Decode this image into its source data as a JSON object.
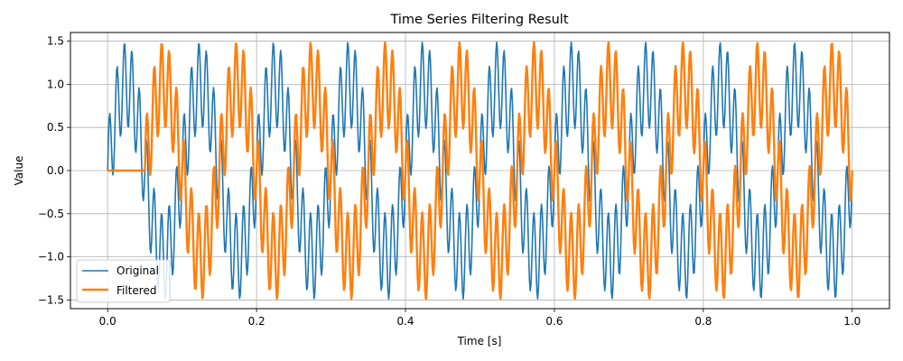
{
  "chart_data": {
    "type": "line",
    "title": "Time Series Filtering Result",
    "xlabel": "Time [s]",
    "ylabel": "Value",
    "xlim": [
      -0.05,
      1.05
    ],
    "ylim": [
      -1.6,
      1.6
    ],
    "grid": true,
    "legend_position": "lower-left",
    "xticks": [
      0.0,
      0.2,
      0.4,
      0.6,
      0.8,
      1.0
    ],
    "xtick_labels": [
      "0.0",
      "0.2",
      "0.4",
      "0.6",
      "0.8",
      "1.0"
    ],
    "yticks": [
      1.5,
      1.0,
      0.5,
      0.0,
      -0.5,
      -1.0,
      -1.5
    ],
    "ytick_labels": [
      "1.5",
      "1.0",
      "0.5",
      "0.0",
      "−0.5",
      "−1.0",
      "−1.5"
    ],
    "series": [
      {
        "name": "Original",
        "color": "#1f77b4",
        "description": "sum of sine components, 1000 samples over 0-1 s",
        "x_range": [
          0.0,
          1.0
        ],
        "samples": 1000,
        "components": [
          {
            "amplitude": 1.0,
            "frequency_hz": 10,
            "phase_deg": 0
          },
          {
            "amplitude": 0.5,
            "frequency_hz": 100,
            "phase_deg": 0
          }
        ]
      },
      {
        "name": "Filtered",
        "color": "#ff7f0e",
        "description": "delayed filter output, flat until start time",
        "x_range": [
          0.0,
          1.0
        ],
        "samples": 1000,
        "start_time": 0.05,
        "components": [
          {
            "amplitude": 1.0,
            "frequency_hz": 10,
            "phase_deg": 180
          },
          {
            "amplitude": 0.5,
            "frequency_hz": 100,
            "phase_deg": 0
          }
        ]
      }
    ]
  }
}
